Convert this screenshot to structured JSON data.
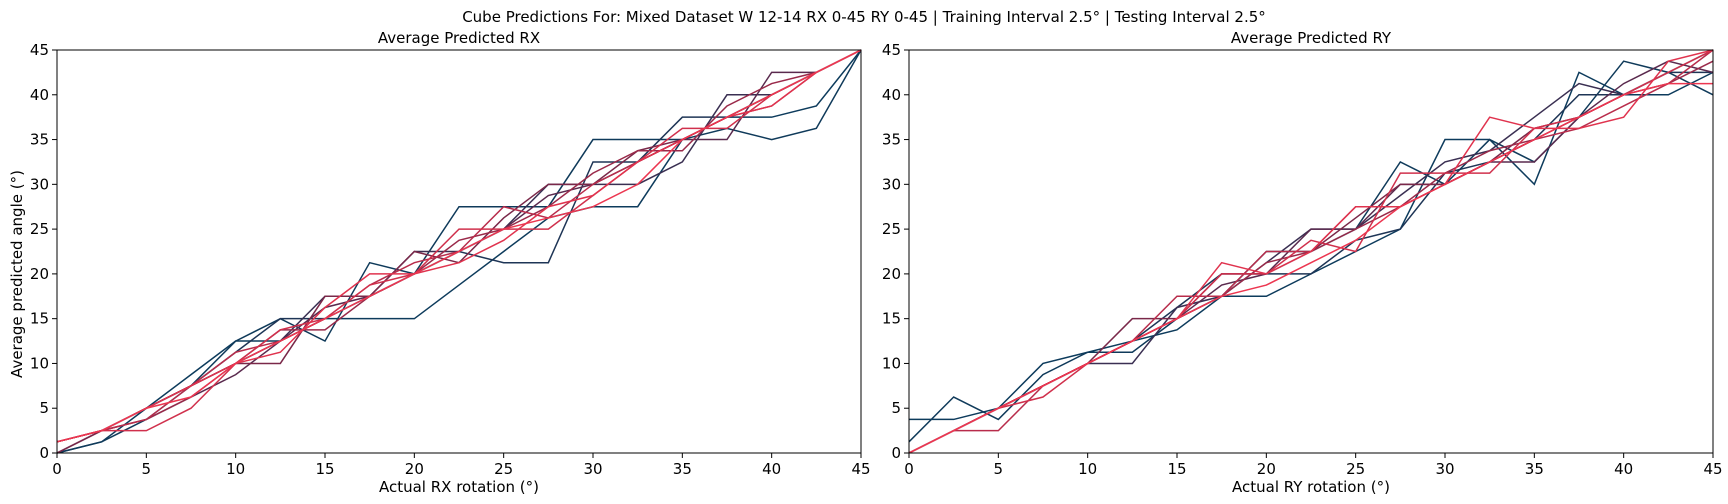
{
  "figure": {
    "suptitle": "Cube Predictions For: Mixed Dataset W 12-14 RX 0-45 RY 0-45 | Training Interval 2.5° | Testing Interval 2.5°"
  },
  "chart_data": [
    {
      "type": "line",
      "title": "Average Predicted RX",
      "xlabel": "Actual RX rotation (°)",
      "ylabel": "Average predicted angle (°)",
      "xlim": [
        0,
        45
      ],
      "ylim": [
        0,
        45
      ],
      "xticks": [
        0,
        5,
        10,
        15,
        20,
        25,
        30,
        35,
        40,
        45
      ],
      "yticks": [
        0,
        5,
        10,
        15,
        20,
        25,
        30,
        35,
        40,
        45
      ],
      "x": [
        0,
        2.5,
        5,
        7.5,
        10,
        12.5,
        15,
        17.5,
        20,
        22.5,
        25,
        27.5,
        30,
        32.5,
        35,
        37.5,
        40,
        42.5,
        45
      ],
      "grid": false,
      "series": [
        {
          "color": "#0d3b5c",
          "values": [
            0,
            1.25,
            5,
            8.75,
            12.5,
            12.5,
            15,
            15,
            15,
            18.75,
            22.5,
            26.25,
            27.5,
            27.5,
            35,
            37.5,
            37.5,
            38.75,
            45
          ]
        },
        {
          "color": "#0f3a5a",
          "values": [
            0,
            1.25,
            3.75,
            7.5,
            12.5,
            15,
            12.5,
            21.25,
            20,
            27.5,
            27.5,
            27.5,
            35,
            35,
            35,
            36.25,
            35,
            36.25,
            45
          ]
        },
        {
          "color": "#1e3556",
          "values": [
            0,
            2.5,
            5,
            7.5,
            11.25,
            15,
            15,
            17.5,
            20,
            22.5,
            21.25,
            21.25,
            32.5,
            32.5,
            37.5,
            37.5,
            40,
            42.5,
            45
          ]
        },
        {
          "color": "#3a2f52",
          "values": [
            1.25,
            2.5,
            5,
            7.5,
            10,
            12.5,
            17.5,
            17.5,
            22.5,
            22.5,
            25,
            30,
            30,
            30,
            32.5,
            40,
            40,
            42.5,
            45
          ]
        },
        {
          "color": "#5a2a4e",
          "values": [
            0,
            2.5,
            3.75,
            6.25,
            8.75,
            12.5,
            16.25,
            17.5,
            20,
            22.5,
            25,
            28.75,
            30,
            32.5,
            35,
            35,
            42.5,
            42.5,
            45
          ]
        },
        {
          "color": "#7a2849",
          "values": [
            0,
            2.5,
            5,
            7.5,
            10,
            10,
            17.5,
            17.5,
            22.5,
            21.25,
            26.25,
            30,
            30,
            33.75,
            35,
            37.5,
            40,
            42.5,
            45
          ]
        },
        {
          "color": "#9a2a4a",
          "values": [
            1.25,
            2.5,
            3.75,
            6.25,
            10,
            13.75,
            13.75,
            17.5,
            20,
            23.75,
            25,
            27.5,
            31.25,
            33.75,
            33.75,
            38.75,
            41.25,
            42.5,
            45
          ]
        },
        {
          "color": "#b82c4b",
          "values": [
            1.25,
            2.5,
            3.75,
            7.5,
            11.25,
            12.5,
            15,
            18.75,
            21.25,
            22.5,
            27.5,
            26.25,
            30,
            32.5,
            35,
            37.5,
            38.75,
            42.5,
            45
          ]
        },
        {
          "color": "#d0304c",
          "values": [
            1.25,
            2.5,
            2.5,
            5,
            10,
            13.75,
            15,
            18.75,
            20,
            25,
            25,
            25,
            28.75,
            32.5,
            36.25,
            36.25,
            40,
            42.5,
            45
          ]
        },
        {
          "color": "#e0334e",
          "values": [
            1.25,
            2.5,
            5,
            7.5,
            10,
            11.25,
            16.25,
            20,
            20,
            21.25,
            23.75,
            27.5,
            28.75,
            32.5,
            35,
            37.5,
            38.75,
            42.5,
            45
          ]
        },
        {
          "color": "#ec3650",
          "values": [
            1.25,
            2.5,
            5,
            6.25,
            10,
            12.5,
            15,
            17.5,
            20,
            22.5,
            25,
            26.25,
            27.5,
            30,
            35,
            37.5,
            40,
            42.5,
            45
          ]
        }
      ]
    },
    {
      "type": "line",
      "title": "Average Predicted RY",
      "xlabel": "Actual RY rotation (°)",
      "ylabel": "",
      "xlim": [
        0,
        45
      ],
      "ylim": [
        0,
        45
      ],
      "xticks": [
        0,
        5,
        10,
        15,
        20,
        25,
        30,
        35,
        40,
        45
      ],
      "yticks": [
        0,
        5,
        10,
        15,
        20,
        25,
        30,
        35,
        40,
        45
      ],
      "x": [
        0,
        2.5,
        5,
        7.5,
        10,
        12.5,
        15,
        17.5,
        20,
        22.5,
        25,
        27.5,
        30,
        32.5,
        35,
        37.5,
        40,
        42.5,
        45
      ],
      "grid": false,
      "series": [
        {
          "color": "#0d3b5c",
          "values": [
            3.75,
            3.75,
            5,
            10,
            11.25,
            12.5,
            13.75,
            17.5,
            17.5,
            20,
            22.5,
            25,
            35,
            35,
            30,
            42.5,
            40,
            40,
            42.5
          ]
        },
        {
          "color": "#0f3a5a",
          "values": [
            1.25,
            6.25,
            3.75,
            8.75,
            11.25,
            11.25,
            15,
            17.5,
            22.5,
            22.5,
            25,
            32.5,
            30,
            35,
            32.5,
            37.5,
            43.75,
            42.5,
            40
          ]
        },
        {
          "color": "#1e3556",
          "values": [
            0,
            2.5,
            5,
            7.5,
            10,
            12.5,
            16.25,
            20,
            20,
            20,
            23.75,
            25,
            31.25,
            32.5,
            35,
            40,
            40,
            42.5,
            42.5
          ]
        },
        {
          "color": "#3a2f52",
          "values": [
            0,
            2.5,
            5,
            7.5,
            10,
            10,
            16.25,
            17.5,
            21.25,
            25,
            25,
            28.75,
            32.5,
            33.75,
            37.5,
            41.25,
            40,
            42.5,
            45
          ]
        },
        {
          "color": "#5a2a4e",
          "values": [
            0,
            2.5,
            5,
            7.5,
            10,
            12.5,
            15,
            18.75,
            20,
            25,
            25,
            30,
            30,
            32.5,
            32.5,
            37.5,
            41.25,
            43.75,
            42.5
          ]
        },
        {
          "color": "#7a2849",
          "values": [
            0,
            2.5,
            5,
            7.5,
            10,
            15,
            15,
            20,
            20,
            22.5,
            26.25,
            30,
            30,
            32.5,
            36.25,
            37.5,
            40,
            42.5,
            45
          ]
        },
        {
          "color": "#9a2a4a",
          "values": [
            0,
            2.5,
            5,
            7.5,
            10,
            12.5,
            15,
            17.5,
            21.25,
            22.5,
            25,
            27.5,
            31.25,
            33.75,
            35,
            37.5,
            40,
            41.25,
            43.75
          ]
        },
        {
          "color": "#b82c4b",
          "values": [
            0,
            2.5,
            2.5,
            7.5,
            10,
            12.5,
            17.5,
            17.5,
            22.5,
            22.5,
            27.5,
            27.5,
            30,
            32.5,
            35,
            36.25,
            38.75,
            41.25,
            45
          ]
        },
        {
          "color": "#d0304c",
          "values": [
            0,
            2.5,
            5,
            6.25,
            10,
            12.5,
            15,
            20,
            20,
            23.75,
            22.5,
            31.25,
            31.25,
            31.25,
            36.25,
            37.5,
            40,
            42.5,
            45
          ]
        },
        {
          "color": "#e0334e",
          "values": [
            0,
            2.5,
            5,
            7.5,
            10,
            12.5,
            15,
            21.25,
            20,
            22.5,
            27.5,
            27.5,
            30,
            37.5,
            36.25,
            36.25,
            37.5,
            43.75,
            45
          ]
        },
        {
          "color": "#ec3650",
          "values": [
            0,
            2.5,
            5,
            7.5,
            10,
            12.5,
            15,
            17.5,
            18.75,
            21.25,
            23.75,
            27.5,
            30,
            32.5,
            35,
            37.5,
            40,
            41.25,
            41.25
          ]
        }
      ]
    }
  ]
}
